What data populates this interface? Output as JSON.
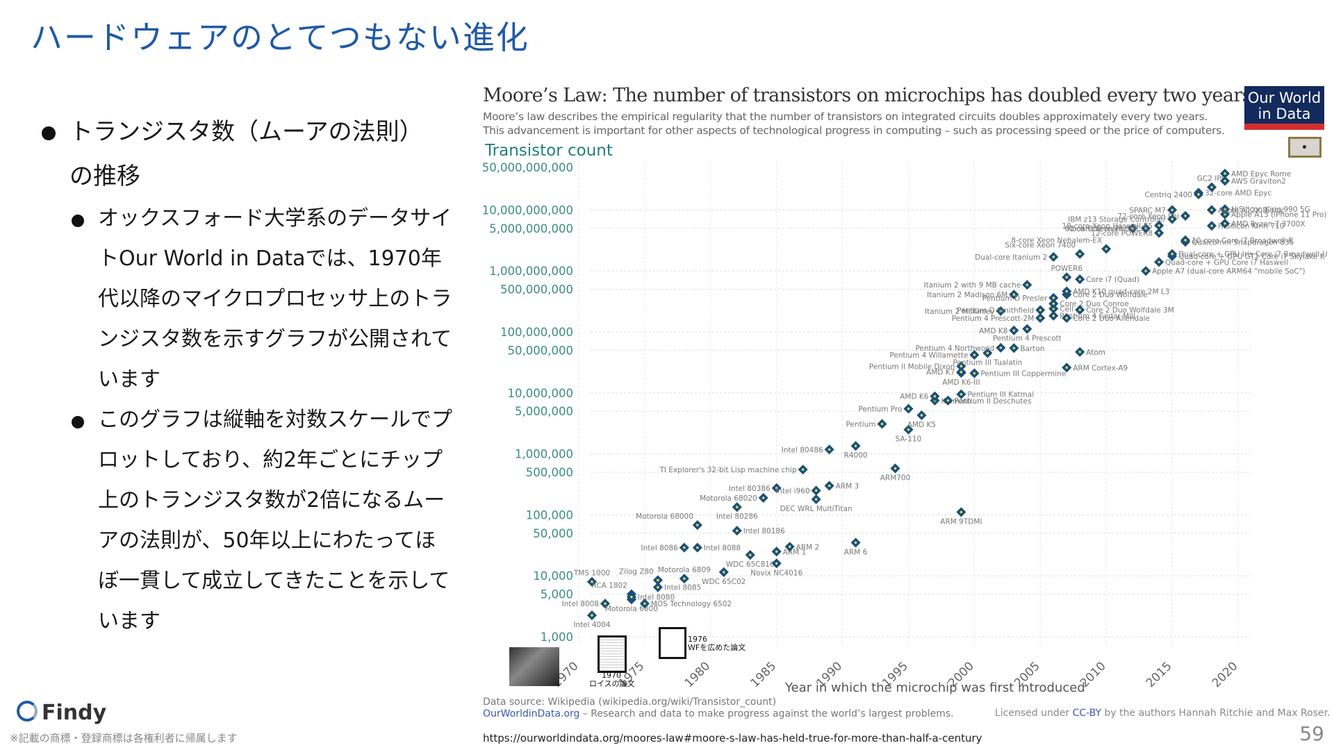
{
  "slide": {
    "title": "ハードウェアのとてつもない進化",
    "bullets": [
      {
        "level": 1,
        "text": "トランジスタ数（ムーアの法則）の推移"
      },
      {
        "level": 2,
        "text": "オックスフォード大学系のデータサイトOur World in Dataでは、1970年代以降のマイクロプロセッサ上のトランジスタ数を示すグラフが公開されています"
      },
      {
        "level": 2,
        "text": "このグラフは縦軸を対数スケールでプロットしており、約2年ごとにチップ上のトランジスタ数が2倍になるムーアの法則が、50年以上にわたってほぼ一貫して成立してきたことを示しています"
      }
    ],
    "source_url": "https://ourworldindata.org/moores-law#moore-s-law-has-held-true-for-more-than-half-a-century",
    "page_number": "59",
    "brand": "Findy",
    "trademark_note": "※記載の商標・登録商標は各権利者に帰属します",
    "annotations": {
      "paper1_caption_year": "1970",
      "paper1_caption_text": "ロイスの論文",
      "paper2_caption_year": "1976",
      "paper2_caption_text": "WFを広めた論文"
    },
    "colors": {
      "title": "#1f5aa6",
      "marker": "#1b4f7a",
      "marker_center": "#d4e157",
      "axis_teal": "#1f7f7a",
      "owid_navy": "#132a5c",
      "owid_red": "#d32f2f"
    }
  },
  "chart_data": {
    "type": "scatter",
    "title": "Moore’s Law: The number of transistors on microchips has doubled every two years",
    "subtitle_lines": [
      "Moore’s law describes the empirical regularity that the number of transistors on integrated circuits doubles approximately every two years.",
      "This advancement is important for other aspects of technological progress in computing – such as processing speed or the price of computers."
    ],
    "logo": [
      "Our World",
      "in Data"
    ],
    "ylabel": "Transistor count",
    "xlabel": "Year in which the microchip was first introduced",
    "yscale": "log",
    "ylim": [
      1000,
      50000000000
    ],
    "xlim": [
      1970,
      2020
    ],
    "y_ticks": [
      {
        "value": 50000000000,
        "label": "50,000,000,000"
      },
      {
        "value": 10000000000,
        "label": "10,000,000,000"
      },
      {
        "value": 5000000000,
        "label": "5,000,000,000"
      },
      {
        "value": 1000000000,
        "label": "1,000,000,000"
      },
      {
        "value": 500000000,
        "label": "500,000,000"
      },
      {
        "value": 100000000,
        "label": "100,000,000"
      },
      {
        "value": 50000000,
        "label": "50,000,000"
      },
      {
        "value": 10000000,
        "label": "10,000,000"
      },
      {
        "value": 5000000,
        "label": "5,000,000"
      },
      {
        "value": 1000000,
        "label": "1,000,000"
      },
      {
        "value": 500000,
        "label": "500,000"
      },
      {
        "value": 100000,
        "label": "100,000"
      },
      {
        "value": 50000,
        "label": "50,000"
      },
      {
        "value": 10000,
        "label": "10,000"
      },
      {
        "value": 5000,
        "label": "5,000"
      },
      {
        "value": 1000,
        "label": "1,000"
      }
    ],
    "x_ticks": [
      1970,
      1975,
      1980,
      1985,
      1990,
      1995,
      2000,
      2005,
      2010,
      2015,
      2020
    ],
    "grid": true,
    "points": [
      {
        "label": "Intel 4004",
        "x": 1971,
        "y": 2250,
        "anchor": "below"
      },
      {
        "label": "Intel 8008",
        "x": 1972,
        "y": 3500,
        "anchor": "left"
      },
      {
        "label": "TMS 1000",
        "x": 1971,
        "y": 8000,
        "anchor": "above"
      },
      {
        "label": "Motorola 6800",
        "x": 1974,
        "y": 4100,
        "anchor": "below"
      },
      {
        "label": "RCA 1802",
        "x": 1974,
        "y": 5000,
        "anchor": "aboveleft"
      },
      {
        "label": "Intel 8080",
        "x": 1974,
        "y": 4500,
        "anchor": "right"
      },
      {
        "label": "MOS Technology 6502",
        "x": 1975,
        "y": 3510,
        "anchor": "right"
      },
      {
        "label": "Zilog Z80",
        "x": 1976,
        "y": 8500,
        "anchor": "aboveleft"
      },
      {
        "label": "Intel 8085",
        "x": 1976,
        "y": 6500,
        "anchor": "right"
      },
      {
        "label": "Motorola 6809",
        "x": 1978,
        "y": 9000,
        "anchor": "above"
      },
      {
        "label": "Intel 8086",
        "x": 1978,
        "y": 29000,
        "anchor": "left"
      },
      {
        "label": "Intel 8088",
        "x": 1979,
        "y": 29000,
        "anchor": "right"
      },
      {
        "label": "Motorola 68000",
        "x": 1979,
        "y": 68000,
        "anchor": "aboveleft"
      },
      {
        "label": "WDC 65C02",
        "x": 1981,
        "y": 11500,
        "anchor": "below"
      },
      {
        "label": "Intel 80186",
        "x": 1982,
        "y": 55000,
        "anchor": "right"
      },
      {
        "label": "Intel 80286",
        "x": 1982,
        "y": 134000,
        "anchor": "below"
      },
      {
        "label": "WDC 65C816",
        "x": 1983,
        "y": 22000,
        "anchor": "below"
      },
      {
        "label": "Motorola 68020",
        "x": 1984,
        "y": 190000,
        "anchor": "left"
      },
      {
        "label": "ARM 1",
        "x": 1985,
        "y": 25000,
        "anchor": "right"
      },
      {
        "label": "Novix NC4016",
        "x": 1985,
        "y": 16000,
        "anchor": "below"
      },
      {
        "label": "ARM 2",
        "x": 1986,
        "y": 30000,
        "anchor": "right"
      },
      {
        "label": "Intel 80386",
        "x": 1985,
        "y": 275000,
        "anchor": "left"
      },
      {
        "label": "TI Explorer's 32-bit Lisp machine chip",
        "x": 1987,
        "y": 553000,
        "anchor": "left"
      },
      {
        "label": "Intel i960",
        "x": 1988,
        "y": 250000,
        "anchor": "left"
      },
      {
        "label": "DEC WRL MultiTitan",
        "x": 1988,
        "y": 180000,
        "anchor": "below"
      },
      {
        "label": "ARM 3",
        "x": 1989,
        "y": 300000,
        "anchor": "right"
      },
      {
        "label": "Intel 80486",
        "x": 1989,
        "y": 1180000,
        "anchor": "left"
      },
      {
        "label": "ARM 6",
        "x": 1991,
        "y": 35000,
        "anchor": "below"
      },
      {
        "label": "R4000",
        "x": 1991,
        "y": 1350000,
        "anchor": "below"
      },
      {
        "label": "ARM700",
        "x": 1994,
        "y": 578000,
        "anchor": "below"
      },
      {
        "label": "Pentium",
        "x": 1993,
        "y": 3100000,
        "anchor": "left"
      },
      {
        "label": "SA-110",
        "x": 1995,
        "y": 2500000,
        "anchor": "below"
      },
      {
        "label": "AMD K5",
        "x": 1996,
        "y": 4300000,
        "anchor": "below"
      },
      {
        "label": "Pentium Pro",
        "x": 1995,
        "y": 5500000,
        "anchor": "left"
      },
      {
        "label": "Klamath",
        "x": 1997,
        "y": 7500000,
        "anchor": "right"
      },
      {
        "label": "AMD K6",
        "x": 1997,
        "y": 8800000,
        "anchor": "left"
      },
      {
        "label": "Pentium II Deschutes",
        "x": 1998,
        "y": 7500000,
        "anchor": "right"
      },
      {
        "label": "Pentium III Katmai",
        "x": 1999,
        "y": 9500000,
        "anchor": "right"
      },
      {
        "label": "ARM 9TDMI",
        "x": 1999,
        "y": 111000,
        "anchor": "below"
      },
      {
        "label": "AMD K6-III",
        "x": 1999,
        "y": 21300000,
        "anchor": "below"
      },
      {
        "label": "AMD K7",
        "x": 1999,
        "y": 22000000,
        "anchor": "left"
      },
      {
        "label": "Pentium III Coppermine",
        "x": 2000,
        "y": 21000000,
        "anchor": "right"
      },
      {
        "label": "Pentium II Mobile Dixon",
        "x": 1999,
        "y": 27400000,
        "anchor": "left"
      },
      {
        "label": "Pentium 4 Willamette",
        "x": 2000,
        "y": 42000000,
        "anchor": "left"
      },
      {
        "label": "Pentium III Tualatin",
        "x": 2001,
        "y": 45000000,
        "anchor": "below"
      },
      {
        "label": "Pentium 4 Northwood",
        "x": 2002,
        "y": 55000000,
        "anchor": "left"
      },
      {
        "label": "Barton",
        "x": 2003,
        "y": 54300000,
        "anchor": "right"
      },
      {
        "label": "AMD K8",
        "x": 2003,
        "y": 105900000,
        "anchor": "left"
      },
      {
        "label": "Pentium 4 Prescott",
        "x": 2004,
        "y": 112000000,
        "anchor": "below"
      },
      {
        "label": "Itanium 2 McKinley",
        "x": 2002,
        "y": 220000000,
        "anchor": "left"
      },
      {
        "label": "Pentium 4 Prescott-2M",
        "x": 2005,
        "y": 169000000,
        "anchor": "left"
      },
      {
        "label": "Itanium 2 Madison 6M",
        "x": 2003,
        "y": 410000000,
        "anchor": "left"
      },
      {
        "label": "Pentium D Smithfield",
        "x": 2005,
        "y": 228000000,
        "anchor": "left"
      },
      {
        "label": "Itanium 2 with 9 MB cache",
        "x": 2004,
        "y": 592000000,
        "anchor": "left"
      },
      {
        "label": "Pentium 4 Cedar Mill",
        "x": 2006,
        "y": 184000000,
        "anchor": "right"
      },
      {
        "label": "Cell",
        "x": 2006,
        "y": 241000000,
        "anchor": "right"
      },
      {
        "label": "Core 2 Duo Conroe",
        "x": 2006,
        "y": 291000000,
        "anchor": "right"
      },
      {
        "label": "Pentium D Presler",
        "x": 2006,
        "y": 362000000,
        "anchor": "left"
      },
      {
        "label": "Core 2 Duo Allendale",
        "x": 2007,
        "y": 169000000,
        "anchor": "right"
      },
      {
        "label": "Core 2 Duo Wolfdale 3M",
        "x": 2008,
        "y": 230000000,
        "anchor": "right"
      },
      {
        "label": "Core 2 Duo Wolfdale",
        "x": 2007,
        "y": 411000000,
        "anchor": "right"
      },
      {
        "label": "AMD K10 quad-core 2M L3",
        "x": 2007,
        "y": 463000000,
        "anchor": "right"
      },
      {
        "label": "POWER6",
        "x": 2007,
        "y": 789000000,
        "anchor": "above"
      },
      {
        "label": "Core i7 (Quad)",
        "x": 2008,
        "y": 731000000,
        "anchor": "right"
      },
      {
        "label": "Atom",
        "x": 2008,
        "y": 47000000,
        "anchor": "right"
      },
      {
        "label": "ARM Cortex-A9",
        "x": 2007,
        "y": 26000000,
        "anchor": "right"
      },
      {
        "label": "Dual-core Itanium 2",
        "x": 2006,
        "y": 1700000000,
        "anchor": "left"
      },
      {
        "label": "Six-core Xeon 7400",
        "x": 2008,
        "y": 1900000000,
        "anchor": "aboveleft"
      },
      {
        "label": "8-core Xeon Nehalem-EX",
        "x": 2010,
        "y": 2300000000,
        "anchor": "aboveleft"
      },
      {
        "label": "12-core POWER8",
        "x": 2014,
        "y": 4200000000,
        "anchor": "left"
      },
      {
        "label": "61-core Xeon Phi",
        "x": 2012,
        "y": 5000000000,
        "anchor": "left"
      },
      {
        "label": "Xbox One main SoC",
        "x": 2013,
        "y": 5000000000,
        "anchor": "left"
      },
      {
        "label": "18-core Xeon Haswell-E5",
        "x": 2014,
        "y": 5560000000,
        "anchor": "left"
      },
      {
        "label": "IBM z13 Storage Controller",
        "x": 2015,
        "y": 7100000000,
        "anchor": "left"
      },
      {
        "label": "SPARC M7",
        "x": 2015,
        "y": 10000000000,
        "anchor": "left"
      },
      {
        "label": "72-core Xeon Phi",
        "x": 2016,
        "y": 8000000000,
        "anchor": "left"
      },
      {
        "label": "Apple A7 (dual-core ARM64 \"mobile SoC\")",
        "x": 2013,
        "y": 1000000000,
        "anchor": "right"
      },
      {
        "label": "Quad-core + GPU Core i7 Haswell",
        "x": 2014,
        "y": 1400000000,
        "anchor": "right"
      },
      {
        "label": "Quad-core + GPU GT2 Core i7 Skylake K",
        "x": 2015,
        "y": 1750000000,
        "anchor": "right"
      },
      {
        "label": "Dual-core + GPU Iris Core i7 Broadwell-U",
        "x": 2015,
        "y": 1900000000,
        "anchor": "right"
      },
      {
        "label": "Qualcomm Snapdragon 835",
        "x": 2016,
        "y": 3000000000,
        "anchor": "right"
      },
      {
        "label": "10-core Core i7 Broadwell-E",
        "x": 2016,
        "y": 3200000000,
        "anchor": "right"
      },
      {
        "label": "HiSilicon Kirin 710",
        "x": 2018,
        "y": 5500000000,
        "anchor": "right"
      },
      {
        "label": "AMD Ryzen 7 3700X",
        "x": 2019,
        "y": 5990000000,
        "anchor": "right"
      },
      {
        "label": "Apple A13 (iPhone 11 Pro)",
        "x": 2019,
        "y": 8500000000,
        "anchor": "right"
      },
      {
        "label": "HiSilicon Kirin 990 5G",
        "x": 2019,
        "y": 10300000000,
        "anchor": "right"
      },
      {
        "label": "Apple A12X Bionic",
        "x": 2018,
        "y": 10000000000,
        "anchor": "right"
      },
      {
        "label": "32-core AMD Epyc",
        "x": 2017,
        "y": 19200000000,
        "anchor": "right"
      },
      {
        "label": "Centriq 2400",
        "x": 2017,
        "y": 18000000000,
        "anchor": "left"
      },
      {
        "label": "GC2 IPU",
        "x": 2018,
        "y": 23600000000,
        "anchor": "above"
      },
      {
        "label": "AWS Graviton2",
        "x": 2019,
        "y": 30000000000,
        "anchor": "right"
      },
      {
        "label": "AMD Epyc Rome",
        "x": 2019,
        "y": 39540000000,
        "anchor": "right"
      }
    ],
    "footer": {
      "source": "Data source: Wikipedia (wikipedia.org/wiki/Transistor_count)",
      "site_link": "OurWorldinData.org",
      "site_tagline": " – Research and data to make progress against the world’s largest problems.",
      "license_prefix": "Licensed under ",
      "license_link": "CC-BY",
      "license_suffix": " by the authors Hannah Ritchie and Max Roser."
    }
  }
}
